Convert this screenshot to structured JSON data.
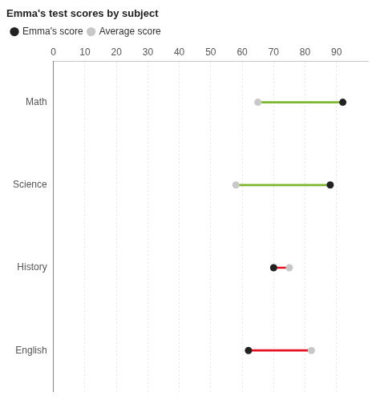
{
  "chart_data": {
    "type": "dumbbell",
    "title": "Emma's test scores by subject",
    "orientation": "horizontal",
    "categories": [
      "Math",
      "Science",
      "History",
      "English"
    ],
    "series": [
      {
        "name": "Emma's score",
        "color": "#222222",
        "values": [
          92,
          88,
          70,
          62
        ]
      },
      {
        "name": "Average score",
        "color": "#c8c8c8",
        "values": [
          65,
          58,
          75,
          82
        ]
      }
    ],
    "colors": [
      "#7cb82f",
      "#7cb82f",
      "#e81123",
      "#e81123"
    ],
    "xlim": [
      0,
      100
    ],
    "xticks": [
      0,
      10,
      20,
      30,
      40,
      50,
      60,
      70,
      80,
      90
    ],
    "grid": true,
    "legend": "top left"
  }
}
